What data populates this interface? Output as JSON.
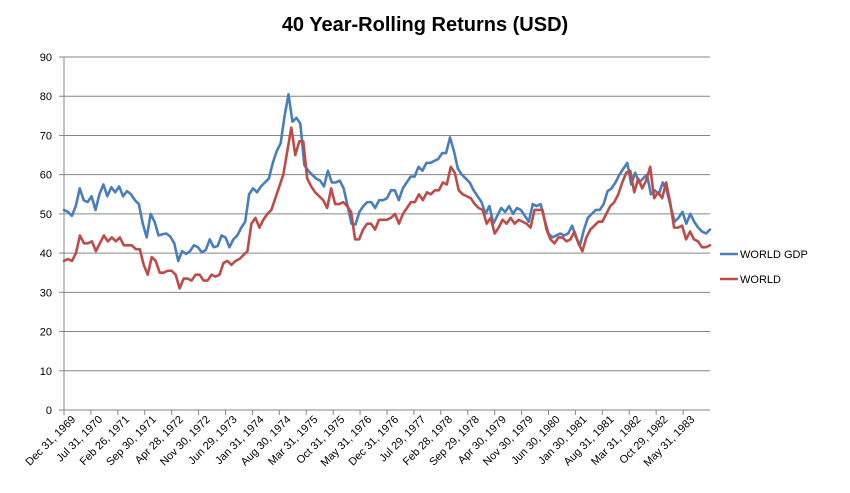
{
  "chart_data": {
    "type": "line",
    "title": "40 Year-Rolling Returns (USD)",
    "xlabel": "",
    "ylabel": "",
    "ylim": [
      0,
      90
    ],
    "yticks": [
      0,
      10,
      20,
      30,
      40,
      50,
      60,
      70,
      80,
      90
    ],
    "grid": "horizontal",
    "legend_position": "right",
    "x_tick_labels": [
      "Dec 31, 1969",
      "Jul 31, 1970",
      "Feb 26, 1971",
      "Sep 30, 1971",
      "Apr 28, 1972",
      "Nov 30, 1972",
      "Jun 29, 1973",
      "Jan 31, 1974",
      "Aug 30, 1974",
      "Mar 31, 1975",
      "Oct 31, 1975",
      "May 31, 1976",
      "Dec 31, 1976",
      "Jul 29, 1977",
      "Feb 28, 1978",
      "Sep 29, 1978",
      "Apr 30, 1979",
      "Nov 30, 1979",
      "Jun 30, 1980",
      "Jan 30, 1981",
      "Aug 31, 1981",
      "Mar 31, 1982",
      "Oct 29, 1982",
      "May 31, 1983"
    ],
    "series": [
      {
        "name": "WORLD GDP",
        "color": "#4a7ebb",
        "values": [
          51,
          50.5,
          49.5,
          52,
          56.5,
          53.5,
          53,
          54.5,
          51,
          55,
          57.5,
          54.5,
          56.8,
          55.5,
          57,
          54.5,
          55.8,
          55,
          53.5,
          52.5,
          47.5,
          44,
          50,
          48,
          44.5,
          44.8,
          45,
          44.2,
          42.5,
          38,
          40.5,
          39.8,
          40.5,
          42,
          41.5,
          40.2,
          40.8,
          43.5,
          41.5,
          41.8,
          44.5,
          44,
          41.5,
          43.5,
          44.5,
          46.5,
          48,
          55,
          56.5,
          55.5,
          57,
          58,
          59,
          63,
          66,
          68,
          75,
          80.5,
          73.5,
          74.5,
          73,
          62.5,
          61,
          60,
          59,
          58.5,
          57,
          61,
          58,
          58,
          58.5,
          56.5,
          52,
          47.5,
          47.3,
          50.5,
          52,
          53,
          53,
          51.5,
          53.5,
          53.5,
          54,
          56,
          56,
          53.5,
          56.5,
          58,
          59.5,
          59.5,
          62,
          61,
          63,
          63,
          63.5,
          64,
          65.5,
          65.5,
          69.5,
          66,
          61.5,
          60,
          59,
          58,
          56,
          54.5,
          53,
          50,
          52,
          47.5,
          49.5,
          51.5,
          50.5,
          52,
          50,
          51.5,
          51,
          49.5,
          48,
          52.5,
          52,
          52.5,
          48.5,
          45,
          44,
          44.5,
          45,
          44.5,
          45,
          47,
          44,
          42,
          46,
          49,
          50,
          51,
          51,
          52.5,
          55.8,
          56.5,
          58,
          60,
          61.5,
          63,
          57.5,
          60.5,
          58,
          59,
          60,
          55,
          56,
          55,
          58,
          56,
          52,
          48,
          49,
          50.5,
          47.5,
          50,
          48,
          46.5,
          45.5,
          45,
          46
        ]
      },
      {
        "name": "WORLD",
        "color": "#be4b48",
        "values": [
          38,
          38.5,
          38,
          40,
          44.5,
          42.5,
          42.5,
          43,
          40.5,
          42.5,
          44.5,
          43,
          44,
          43,
          44,
          42,
          42,
          42,
          41,
          41,
          37,
          34.5,
          39,
          38,
          35,
          35,
          35.5,
          35.5,
          34.5,
          31,
          33.5,
          33.5,
          33,
          34.5,
          34.5,
          33,
          33,
          34.5,
          34,
          34.5,
          37.5,
          38,
          37,
          38,
          38.5,
          39.5,
          40.5,
          47.5,
          49,
          46.5,
          48.5,
          50,
          51,
          54,
          57,
          60,
          66,
          72,
          65,
          68.5,
          68.5,
          59,
          57,
          55.5,
          54.5,
          53.5,
          51.5,
          56.5,
          52.5,
          52.5,
          53,
          52,
          50.5,
          43.5,
          43.5,
          46,
          47.5,
          47.5,
          46,
          48.5,
          48.5,
          48.5,
          49,
          50,
          47.5,
          50,
          51.5,
          53,
          53,
          55,
          53.5,
          55.5,
          55,
          56,
          56,
          58,
          57.5,
          62,
          60.5,
          56,
          55,
          54.5,
          54,
          52.5,
          51.5,
          51,
          47.5,
          49,
          45,
          46.5,
          48.5,
          47.5,
          49,
          47.5,
          48.5,
          48,
          47.5,
          46.5,
          51,
          51,
          51,
          46,
          43.5,
          42.5,
          44,
          44,
          43,
          43.5,
          45.5,
          42.5,
          40.5,
          44,
          46,
          47,
          48,
          48,
          50,
          52,
          53,
          55,
          58,
          60.5,
          61,
          55.5,
          59,
          56.5,
          58.5,
          62,
          54,
          55.5,
          54,
          58,
          53,
          46.5,
          46.5,
          47,
          43.5,
          45.5,
          43.5,
          43,
          41.5,
          41.5,
          42
        ]
      }
    ]
  }
}
